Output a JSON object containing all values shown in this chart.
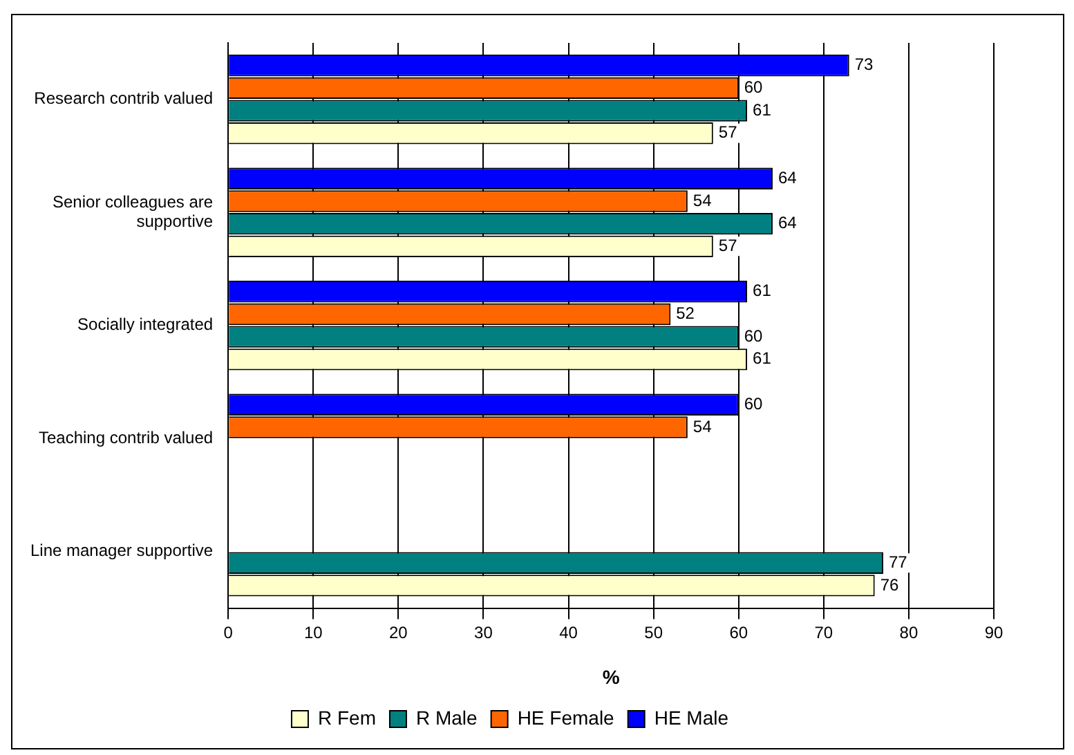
{
  "chart_data": {
    "type": "bar",
    "orientation": "horizontal",
    "xlabel": "%",
    "categories": [
      "Research contrib valued",
      "Senior colleagues are supportive",
      "Socially integrated",
      "Teaching contrib valued",
      "Line manager supportive"
    ],
    "series": [
      {
        "name": "R Fem",
        "color": "#ffffcc",
        "values": [
          57,
          57,
          61,
          null,
          76
        ]
      },
      {
        "name": "R Male",
        "color": "#008080",
        "values": [
          61,
          64,
          60,
          null,
          77
        ]
      },
      {
        "name": "HE Female",
        "color": "#ff6600",
        "values": [
          60,
          54,
          52,
          54,
          null
        ]
      },
      {
        "name": "HE Male",
        "color": "#0000ff",
        "values": [
          73,
          64,
          61,
          60,
          null
        ]
      }
    ],
    "xlim": [
      0,
      90
    ],
    "xticks": [
      0,
      10,
      20,
      30,
      40,
      50,
      60,
      70,
      80,
      90
    ],
    "grid": "x",
    "legend": "bottom",
    "data_labels": true
  }
}
